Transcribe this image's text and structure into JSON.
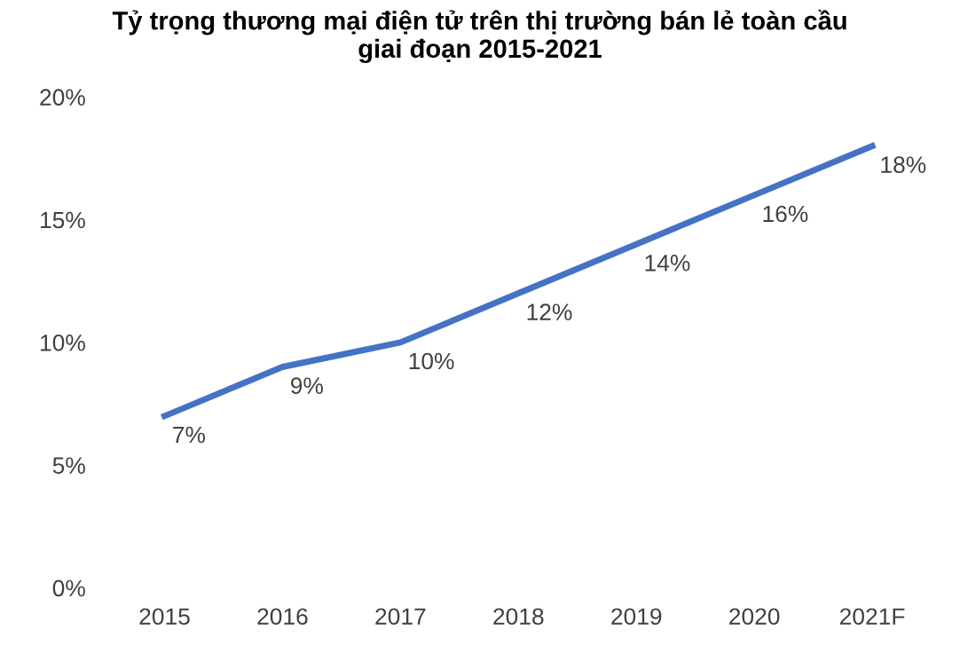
{
  "chart_data": {
    "type": "line",
    "title": "Tỷ trọng thương mại điện tử trên thị trường bán lẻ toàn cầu\ngiai đoạn 2015-2021",
    "categories": [
      "2015",
      "2016",
      "2017",
      "2018",
      "2019",
      "2020",
      "2021F"
    ],
    "series": [
      {
        "color": "#4472c4",
        "values": [
          7,
          9,
          10,
          12,
          14,
          16,
          18
        ],
        "value_labels": [
          "7%",
          "9%",
          "10%",
          "12%",
          "14%",
          "16%",
          "18%"
        ]
      }
    ],
    "ylim": [
      0,
      20
    ],
    "yticks": [
      {
        "value": 0,
        "label": "0%"
      },
      {
        "value": 5,
        "label": "5%"
      },
      {
        "value": 10,
        "label": "10%"
      },
      {
        "value": 15,
        "label": "15%"
      },
      {
        "value": 20,
        "label": "20%"
      }
    ],
    "grid": false,
    "legend": false,
    "marker": "none",
    "line_style": "solid"
  }
}
